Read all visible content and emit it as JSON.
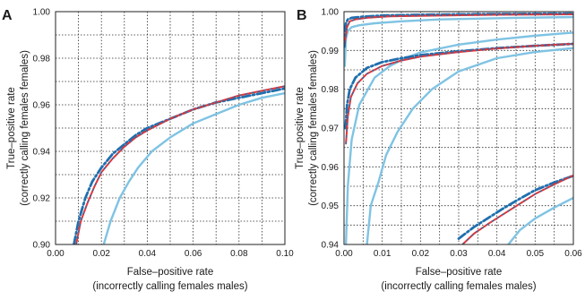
{
  "chart_data": [
    {
      "type": "line",
      "panel_label": "A",
      "xlabel": [
        "False–positive rate",
        "(incorrectly calling females males)"
      ],
      "ylabel": [
        "True–positive rate",
        "(correctly calling females females)"
      ],
      "xlim": [
        0,
        0.1
      ],
      "ylim": [
        0.9,
        1.0
      ],
      "x_ticks": [
        "0.00",
        "0.02",
        "0.04",
        "0.06",
        "0.08",
        "0.10"
      ],
      "y_ticks": [
        "0.90",
        "0.92",
        "0.94",
        "0.96",
        "0.98",
        "1.00"
      ],
      "x_tick_values": [
        0,
        0.02,
        0.04,
        0.06,
        0.08,
        0.1
      ],
      "y_tick_values": [
        0.9,
        0.92,
        0.94,
        0.96,
        0.98,
        1.0
      ],
      "grid": {
        "x": [
          0.01,
          0.02,
          0.03,
          0.04,
          0.05,
          0.06,
          0.07,
          0.08,
          0.09
        ],
        "y": [
          0.91,
          0.92,
          0.93,
          0.94,
          0.95,
          0.96,
          0.97,
          0.98,
          0.99
        ]
      },
      "series": [
        {
          "style": "light",
          "x": [
            0.021,
            0.024,
            0.028,
            0.032,
            0.036,
            0.042,
            0.05,
            0.06,
            0.07,
            0.08,
            0.09,
            0.1
          ],
          "y": [
            0.9,
            0.91,
            0.92,
            0.927,
            0.933,
            0.94,
            0.946,
            0.952,
            0.956,
            0.96,
            0.963,
            0.965
          ]
        },
        {
          "style": "dashdot",
          "x": [
            0.008,
            0.01,
            0.013,
            0.016,
            0.02,
            0.025,
            0.03,
            0.035,
            0.04,
            0.05,
            0.06,
            0.07,
            0.08,
            0.09,
            0.1
          ],
          "y": [
            0.9,
            0.91,
            0.92,
            0.927,
            0.933,
            0.939,
            0.943,
            0.947,
            0.95,
            0.954,
            0.958,
            0.961,
            0.963,
            0.965,
            0.967
          ]
        },
        {
          "style": "red-dashed",
          "x": [
            0.009,
            0.011,
            0.014,
            0.017,
            0.02,
            0.025,
            0.03,
            0.035,
            0.04,
            0.05,
            0.06,
            0.07,
            0.08,
            0.09,
            0.1
          ],
          "y": [
            0.9,
            0.91,
            0.918,
            0.925,
            0.931,
            0.937,
            0.942,
            0.946,
            0.949,
            0.954,
            0.958,
            0.961,
            0.964,
            0.966,
            0.968
          ]
        }
      ]
    },
    {
      "type": "line",
      "panel_label": "B",
      "xlabel": [
        "False–positive rate",
        "(incorrectly calling females males)"
      ],
      "ylabel": [
        "True–positive rate",
        "(correctly calling females females)"
      ],
      "xlim": [
        0,
        0.06
      ],
      "ylim": [
        0.94,
        1.0
      ],
      "x_ticks": [
        "0.00",
        "0.01",
        "0.02",
        "0.03",
        "0.04",
        "0.05",
        "0.06"
      ],
      "y_ticks": [
        "0.94",
        "0.95",
        "0.96",
        "0.97",
        "0.98",
        "0.99",
        "1.00"
      ],
      "x_tick_values": [
        0,
        0.01,
        0.02,
        0.03,
        0.04,
        0.05,
        0.06
      ],
      "y_tick_values": [
        0.94,
        0.95,
        0.96,
        0.97,
        0.98,
        0.99,
        1.0
      ],
      "grid": {
        "x": [
          0.005,
          0.01,
          0.015,
          0.02,
          0.025,
          0.03,
          0.035,
          0.04,
          0.045,
          0.05,
          0.055
        ],
        "y": [
          0.945,
          0.95,
          0.955,
          0.96,
          0.965,
          0.97,
          0.975,
          0.98,
          0.985,
          0.99,
          0.995
        ]
      },
      "series": [
        {
          "style": "light",
          "x": [
            0.0002,
            0.0005,
            0.001,
            0.002,
            0.004,
            0.008,
            0.015,
            0.025,
            0.035,
            0.045,
            0.06
          ],
          "y": [
            0.986,
            0.993,
            0.995,
            0.996,
            0.9965,
            0.997,
            0.9975,
            0.998,
            0.9982,
            0.9984,
            0.9986
          ]
        },
        {
          "style": "dashdot",
          "x": [
            0.0001,
            0.0005,
            0.001,
            0.002,
            0.005,
            0.01,
            0.02,
            0.04,
            0.06
          ],
          "y": [
            0.991,
            0.997,
            0.998,
            0.9984,
            0.9987,
            0.999,
            0.9992,
            0.9994,
            0.9995
          ]
        },
        {
          "style": "red-dashed",
          "x": [
            0.0002,
            0.0008,
            0.0015,
            0.003,
            0.006,
            0.012,
            0.025,
            0.04,
            0.06
          ],
          "y": [
            0.992,
            0.996,
            0.9975,
            0.998,
            0.9984,
            0.9988,
            0.999,
            0.9992,
            0.9993
          ]
        },
        {
          "style": "light",
          "x": [
            0.0005,
            0.001,
            0.002,
            0.004,
            0.008,
            0.012,
            0.016,
            0.02,
            0.03,
            0.04,
            0.05,
            0.06
          ],
          "y": [
            0.94,
            0.955,
            0.967,
            0.976,
            0.983,
            0.986,
            0.988,
            0.9895,
            0.9915,
            0.9928,
            0.9938,
            0.9946
          ]
        },
        {
          "style": "dashdot",
          "x": [
            0.0004,
            0.0008,
            0.0015,
            0.003,
            0.006,
            0.01,
            0.015,
            0.02,
            0.03,
            0.04,
            0.05,
            0.06
          ],
          "y": [
            0.97,
            0.976,
            0.98,
            0.983,
            0.9855,
            0.987,
            0.988,
            0.9888,
            0.9898,
            0.9906,
            0.9912,
            0.9917
          ]
        },
        {
          "style": "red-dashed",
          "x": [
            0.0005,
            0.001,
            0.0018,
            0.0035,
            0.006,
            0.01,
            0.015,
            0.02,
            0.03,
            0.04,
            0.05,
            0.06
          ],
          "y": [
            0.966,
            0.973,
            0.978,
            0.9815,
            0.984,
            0.986,
            0.9874,
            0.9884,
            0.9896,
            0.9905,
            0.9912,
            0.9917
          ]
        },
        {
          "style": "light",
          "x": [
            0.006,
            0.007,
            0.009,
            0.011,
            0.014,
            0.018,
            0.023,
            0.03,
            0.04,
            0.05,
            0.06
          ],
          "y": [
            0.94,
            0.95,
            0.956,
            0.963,
            0.969,
            0.975,
            0.98,
            0.9846,
            0.988,
            0.9896,
            0.9906
          ]
        },
        {
          "style": "light",
          "x": [
            0.043,
            0.046,
            0.05,
            0.055,
            0.06
          ],
          "y": [
            0.94,
            0.9437,
            0.9467,
            0.9495,
            0.952
          ]
        },
        {
          "style": "dashdot",
          "x": [
            0.03,
            0.034,
            0.038,
            0.042,
            0.046,
            0.05,
            0.055,
            0.06
          ],
          "y": [
            0.9415,
            0.9445,
            0.947,
            0.9495,
            0.9518,
            0.954,
            0.956,
            0.9577
          ]
        },
        {
          "style": "red-dashed",
          "x": [
            0.031,
            0.034,
            0.038,
            0.042,
            0.046,
            0.05,
            0.055,
            0.06
          ],
          "y": [
            0.94,
            0.9428,
            0.9455,
            0.948,
            0.9505,
            0.953,
            0.9555,
            0.9578
          ]
        }
      ]
    }
  ],
  "colors": {
    "dark_blue": "#1f6fae",
    "light_blue": "#7fc3e3",
    "red": "#e0363a"
  }
}
